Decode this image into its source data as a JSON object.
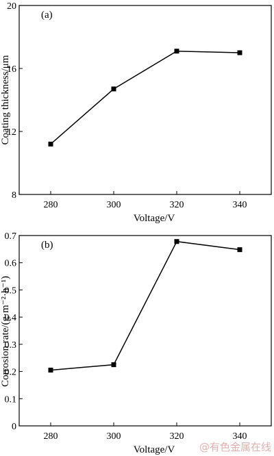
{
  "chart_data": [
    {
      "type": "line",
      "panel_label": "(a)",
      "x": [
        280,
        300,
        320,
        340
      ],
      "series": [
        {
          "values": [
            11.2,
            14.7,
            17.1,
            17.0
          ]
        }
      ],
      "xlabel": "Voltage/V",
      "ylabel": "Coating thickness/μm",
      "xlim": [
        270,
        350
      ],
      "ylim": [
        8,
        20
      ],
      "xticks": [
        280,
        300,
        320,
        340
      ],
      "yticks": [
        8,
        12,
        16,
        20
      ],
      "grid": false,
      "marker": "square",
      "color": "#000000"
    },
    {
      "type": "line",
      "panel_label": "(b)",
      "x": [
        280,
        300,
        320,
        340
      ],
      "series": [
        {
          "values": [
            0.205,
            0.225,
            0.678,
            0.648
          ]
        }
      ],
      "xlabel": "Voltage/V",
      "ylabel": "Corrosion rate/(g·m⁻²·h⁻¹)",
      "xlim": [
        270,
        350
      ],
      "ylim": [
        0,
        0.7
      ],
      "xticks": [
        280,
        300,
        320,
        340
      ],
      "yticks": [
        0,
        0.1,
        0.2,
        0.3,
        0.4,
        0.5,
        0.6,
        0.7
      ],
      "grid": false,
      "marker": "square",
      "color": "#000000"
    }
  ],
  "watermark": "@有色金属在线"
}
